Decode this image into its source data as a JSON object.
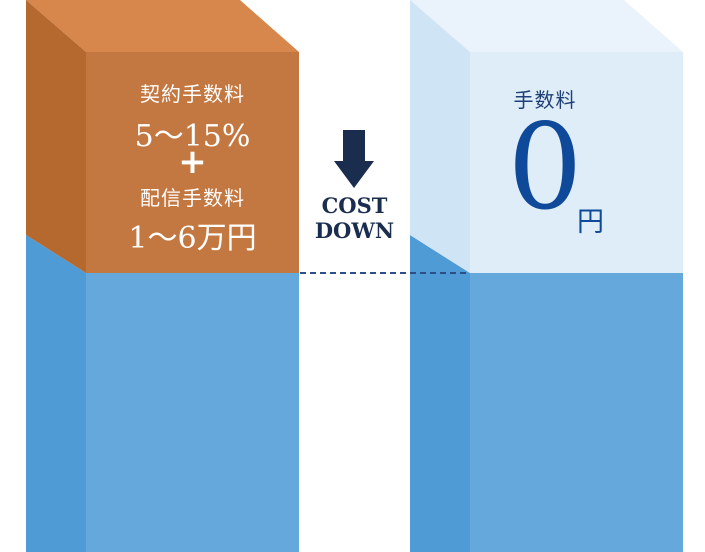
{
  "left_block": {
    "line1": "契約手数料",
    "line2": "5〜15%",
    "plus": "+",
    "line3": "配信手数料",
    "line4": "1〜6万円"
  },
  "middle": {
    "cost": "COST",
    "down": "DOWN"
  },
  "right_block": {
    "label": "手数料",
    "value": "0",
    "unit": "円"
  },
  "colors": {
    "orange_front": "#c47841",
    "orange_side": "#b5692f",
    "orange_top": "#d7874b",
    "blue_front": "#64a8dc",
    "blue_side": "#4f9bd6",
    "light_front": "#deedf8",
    "light_side": "#cfe4f5",
    "light_top": "#eaf3fb",
    "arrow": "#1b2d4f",
    "dashed": "#2b4f86"
  }
}
